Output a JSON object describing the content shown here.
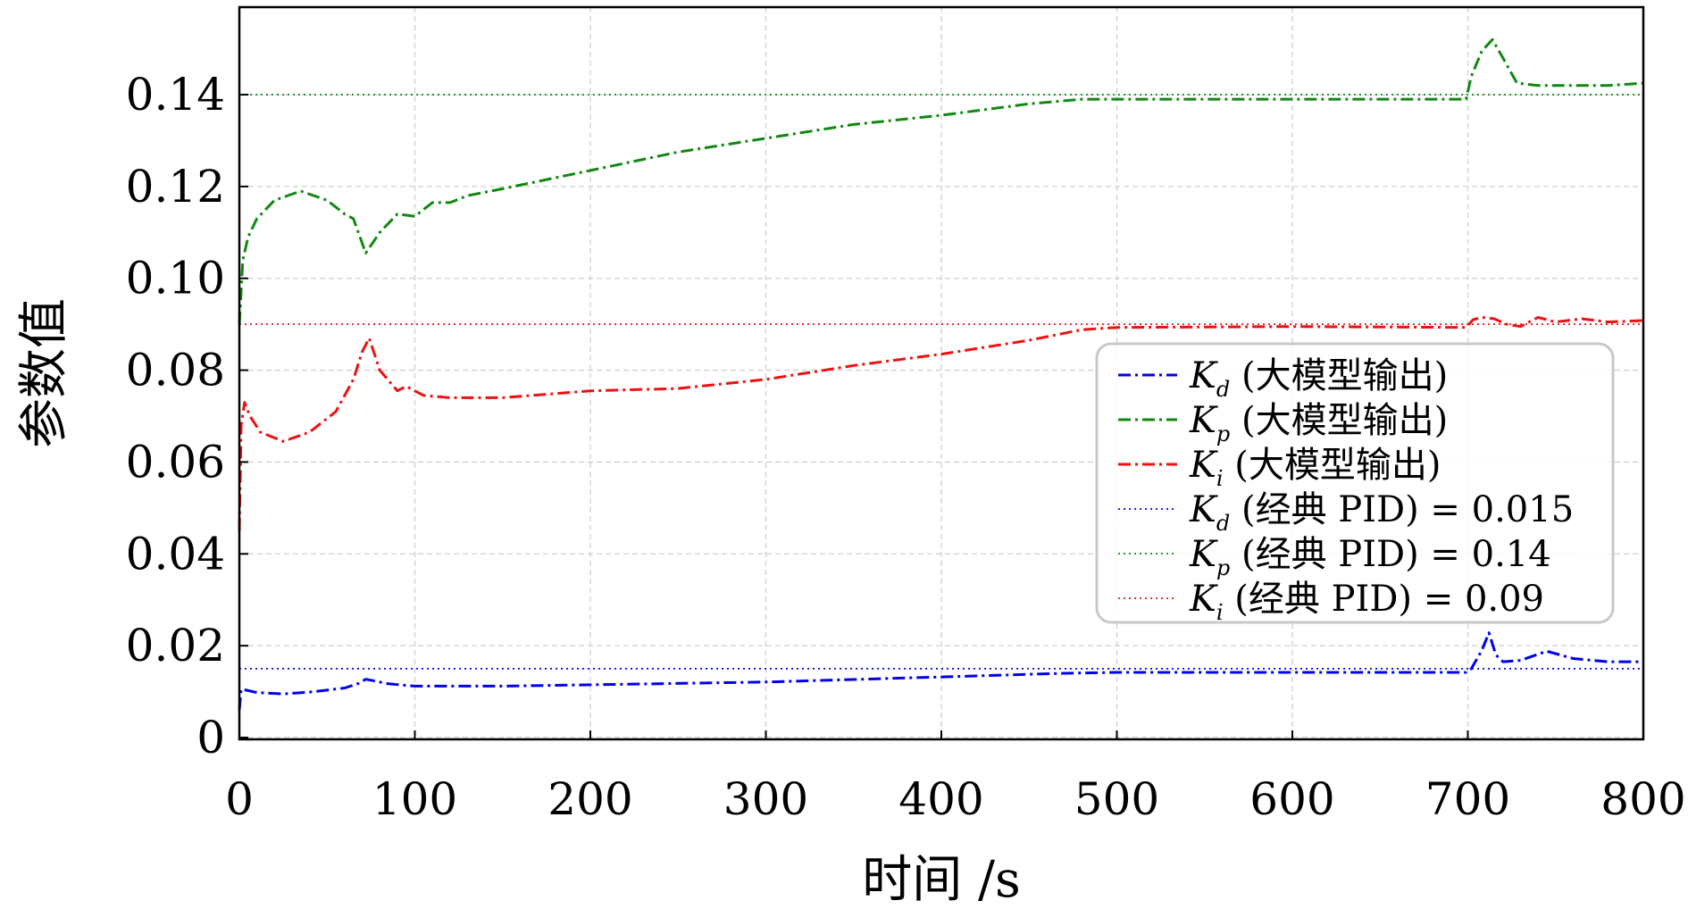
{
  "chart_data": {
    "type": "line",
    "xlabel": "时间 /s",
    "ylabel": "参数值",
    "xlim": [
      0,
      800
    ],
    "ylim": [
      0,
      0.16
    ],
    "xticks": [
      0,
      100,
      200,
      300,
      400,
      500,
      600,
      700,
      800
    ],
    "xtick_labels": [
      "0",
      "100",
      "200",
      "300",
      "400",
      "500",
      "600",
      "700",
      "800"
    ],
    "yticks": [
      0,
      0.02,
      0.04,
      0.06,
      0.08,
      0.1,
      0.12,
      0.14
    ],
    "ytick_labels": [
      "0",
      "0.02",
      "0.04",
      "0.06",
      "0.08",
      "0.10",
      "0.12",
      "0.14"
    ],
    "grid": true,
    "legend_position": "center-right",
    "colors": {
      "kd": "#0000ee",
      "kp": "#118811",
      "ki": "#ee1111"
    },
    "series": [
      {
        "name": "Kd (大模型输出)",
        "symbol": "K",
        "sub": "d",
        "suffix": " (大模型输出)",
        "style": "dashdot",
        "color": "#0000ee",
        "x": [
          0,
          1,
          3,
          10,
          25,
          40,
          60,
          68,
          72,
          76,
          85,
          100,
          150,
          200,
          300,
          400,
          470,
          500,
          600,
          699,
          702,
          708,
          712,
          716,
          720,
          730,
          745,
          760,
          780,
          800
        ],
        "y": [
          0.006,
          0.0105,
          0.0104,
          0.0098,
          0.0095,
          0.0099,
          0.0108,
          0.0118,
          0.0127,
          0.0124,
          0.0117,
          0.0112,
          0.0112,
          0.0115,
          0.0121,
          0.0132,
          0.014,
          0.0142,
          0.0142,
          0.0142,
          0.015,
          0.019,
          0.0228,
          0.018,
          0.0165,
          0.0168,
          0.0188,
          0.0172,
          0.0165,
          0.0165
        ]
      },
      {
        "name": "Kp (大模型输出)",
        "symbol": "K",
        "sub": "p",
        "suffix": " (大模型输出)",
        "style": "dashdot",
        "color": "#118811",
        "x": [
          0,
          2,
          5,
          10,
          20,
          35,
          50,
          60,
          65,
          72,
          80,
          90,
          100,
          110,
          120,
          130,
          150,
          200,
          250,
          300,
          350,
          400,
          450,
          480,
          500,
          600,
          699,
          702,
          708,
          714,
          720,
          728,
          740,
          760,
          780,
          800
        ],
        "y": [
          0.09,
          0.104,
          0.109,
          0.113,
          0.117,
          0.119,
          0.117,
          0.114,
          0.113,
          0.1055,
          0.11,
          0.114,
          0.1135,
          0.1165,
          0.1165,
          0.118,
          0.1195,
          0.1235,
          0.1275,
          0.1305,
          0.1335,
          0.1355,
          0.138,
          0.139,
          0.139,
          0.139,
          0.139,
          0.144,
          0.1495,
          0.152,
          0.148,
          0.1425,
          0.142,
          0.142,
          0.142,
          0.1425
        ]
      },
      {
        "name": "Ki (大模型输出)",
        "symbol": "K",
        "sub": "i",
        "suffix": " (大模型输出)",
        "style": "dashdot",
        "color": "#ee1111",
        "x": [
          0,
          1,
          3,
          6,
          12,
          25,
          40,
          55,
          65,
          70,
          74,
          80,
          90,
          95,
          105,
          120,
          150,
          200,
          250,
          300,
          350,
          400,
          450,
          480,
          500,
          600,
          699,
          703,
          708,
          715,
          722,
          730,
          740,
          750,
          765,
          780,
          800
        ],
        "y": [
          0.045,
          0.068,
          0.073,
          0.07,
          0.0665,
          0.0645,
          0.0665,
          0.071,
          0.078,
          0.084,
          0.087,
          0.08,
          0.0755,
          0.0765,
          0.0745,
          0.074,
          0.074,
          0.0755,
          0.076,
          0.078,
          0.081,
          0.0835,
          0.0865,
          0.0888,
          0.0893,
          0.0895,
          0.0893,
          0.091,
          0.0915,
          0.0912,
          0.09,
          0.0895,
          0.0915,
          0.0905,
          0.0912,
          0.0905,
          0.0908
        ]
      },
      {
        "name": "Kd (经典 PID) = 0.015",
        "symbol": "K",
        "sub": "d",
        "suffix": " (经典 PID) = 0.015",
        "style": "dotted",
        "color": "#0000ee",
        "x": [
          0,
          800
        ],
        "y": [
          0.015,
          0.015
        ]
      },
      {
        "name": "Kp (经典 PID) = 0.14",
        "symbol": "K",
        "sub": "p",
        "suffix": " (经典 PID) = 0.14",
        "style": "dotted",
        "color": "#118811",
        "x": [
          0,
          800
        ],
        "y": [
          0.14,
          0.14
        ]
      },
      {
        "name": "Ki (经典 PID) = 0.09",
        "symbol": "K",
        "sub": "i",
        "suffix": " (经典 PID) = 0.09",
        "style": "dotted",
        "color": "#ee1111",
        "x": [
          0,
          800
        ],
        "y": [
          0.09,
          0.09
        ]
      }
    ]
  }
}
